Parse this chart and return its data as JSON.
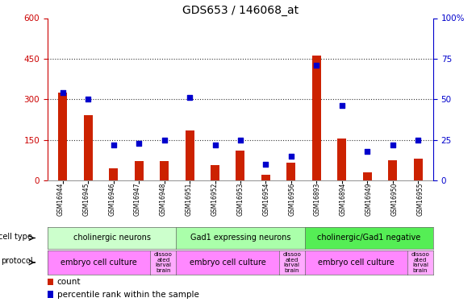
{
  "title": "GDS653 / 146068_at",
  "samples": [
    "GSM16944",
    "GSM16945",
    "GSM16946",
    "GSM16947",
    "GSM16948",
    "GSM16951",
    "GSM16952",
    "GSM16953",
    "GSM16954",
    "GSM16956",
    "GSM16893",
    "GSM16894",
    "GSM16949",
    "GSM16950",
    "GSM16955"
  ],
  "count_values": [
    325,
    240,
    45,
    70,
    70,
    185,
    55,
    110,
    20,
    65,
    460,
    155,
    30,
    75,
    80
  ],
  "percentile_values": [
    54,
    50,
    22,
    23,
    25,
    51,
    22,
    25,
    10,
    15,
    71,
    46,
    18,
    22,
    25
  ],
  "cell_type_groups": [
    {
      "label": "cholinergic neurons",
      "start": 0,
      "end": 4,
      "color": "#ccffcc"
    },
    {
      "label": "Gad1 expressing neurons",
      "start": 5,
      "end": 9,
      "color": "#aaffaa"
    },
    {
      "label": "cholinergic/Gad1 negative",
      "start": 10,
      "end": 14,
      "color": "#55ee55"
    }
  ],
  "protocol_groups": [
    {
      "label": "embryo cell culture",
      "start": 0,
      "end": 3,
      "color": "#ff88ff"
    },
    {
      "label": "dissoo\nated\nlarval\nbrain",
      "start": 4,
      "end": 4,
      "color": "#ffaaff"
    },
    {
      "label": "embryo cell culture",
      "start": 5,
      "end": 8,
      "color": "#ff88ff"
    },
    {
      "label": "dissoo\nated\nlarval\nbrain",
      "start": 9,
      "end": 9,
      "color": "#ffaaff"
    },
    {
      "label": "embryo cell culture",
      "start": 10,
      "end": 13,
      "color": "#ff88ff"
    },
    {
      "label": "dissoo\nated\nlarval\nbrain",
      "start": 14,
      "end": 14,
      "color": "#ffaaff"
    }
  ],
  "left_ylim": [
    0,
    600
  ],
  "left_yticks": [
    0,
    150,
    300,
    450,
    600
  ],
  "right_ylim": [
    0,
    100
  ],
  "right_yticks": [
    0,
    25,
    50,
    75,
    100
  ],
  "bar_color": "#cc2200",
  "dot_color": "#0000cc",
  "tick_label_color": "#cc0000",
  "right_tick_color": "#0000cc",
  "bg_color": "#ffffff",
  "xtick_bg_color": "#dddddd",
  "title_fontsize": 10,
  "bar_width": 0.35
}
